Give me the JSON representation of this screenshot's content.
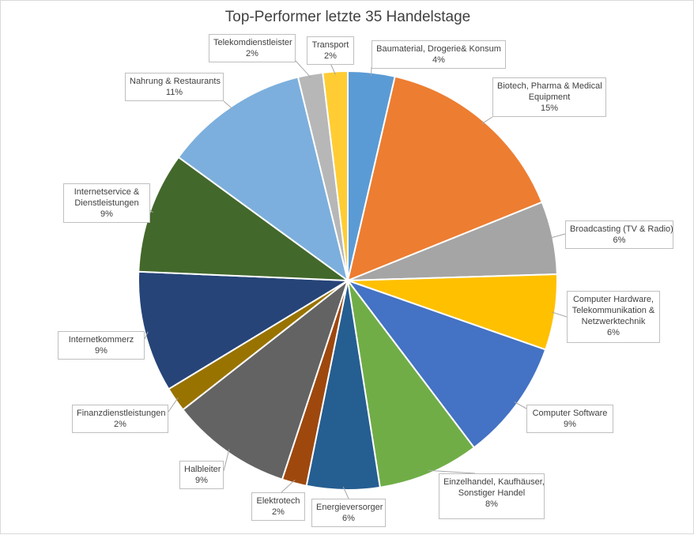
{
  "chart_data": {
    "type": "pie",
    "title": "Top-Performer letzte 35 Handelstage",
    "legend": "none",
    "slices": [
      {
        "label": "Baumaterial, Drogerie& Konsum",
        "display": "4%",
        "value": 3.6,
        "color": "#5b9bd5"
      },
      {
        "label": "Biotech, Pharma & Medical Equipment",
        "display": "15%",
        "value": 15.2,
        "color": "#ed7d31"
      },
      {
        "label": "Broadcasting (TV & Radio)",
        "display": "6%",
        "value": 5.6,
        "color": "#a5a5a5"
      },
      {
        "label": "Computer Hardware, Telekommunikation & Netzwerktechnik",
        "display": "6%",
        "value": 5.8,
        "color": "#ffc000"
      },
      {
        "label": "Computer Software",
        "display": "9%",
        "value": 9.3,
        "color": "#4472c4"
      },
      {
        "label": "Einzelhandel, Kaufhäuser, Sonstiger Handel",
        "display": "8%",
        "value": 7.8,
        "color": "#70ad47"
      },
      {
        "label": "Energieversorger",
        "display": "6%",
        "value": 5.6,
        "color": "#255e91"
      },
      {
        "label": "Elektrotech",
        "display": "2%",
        "value": 1.9,
        "color": "#9e480e"
      },
      {
        "label": "Halbleiter",
        "display": "9%",
        "value": 9.3,
        "color": "#636363"
      },
      {
        "label": "Finanzdienstleistungen",
        "display": "2%",
        "value": 1.9,
        "color": "#997300"
      },
      {
        "label": "Internetkommerz",
        "display": "9%",
        "value": 9.3,
        "color": "#264478"
      },
      {
        "label": "Internetservice & Dienstleistungen",
        "display": "9%",
        "value": 9.3,
        "color": "#43682b"
      },
      {
        "label": "Nahrung & Restaurants",
        "display": "11%",
        "value": 11.1,
        "color": "#7cafdd"
      },
      {
        "label": "Telekomdienstleister",
        "display": "2%",
        "value": 1.9,
        "color": "#b7b7b7"
      },
      {
        "label": "Transport",
        "display": "2%",
        "value": 1.9,
        "color": "#ffcd33"
      }
    ]
  }
}
